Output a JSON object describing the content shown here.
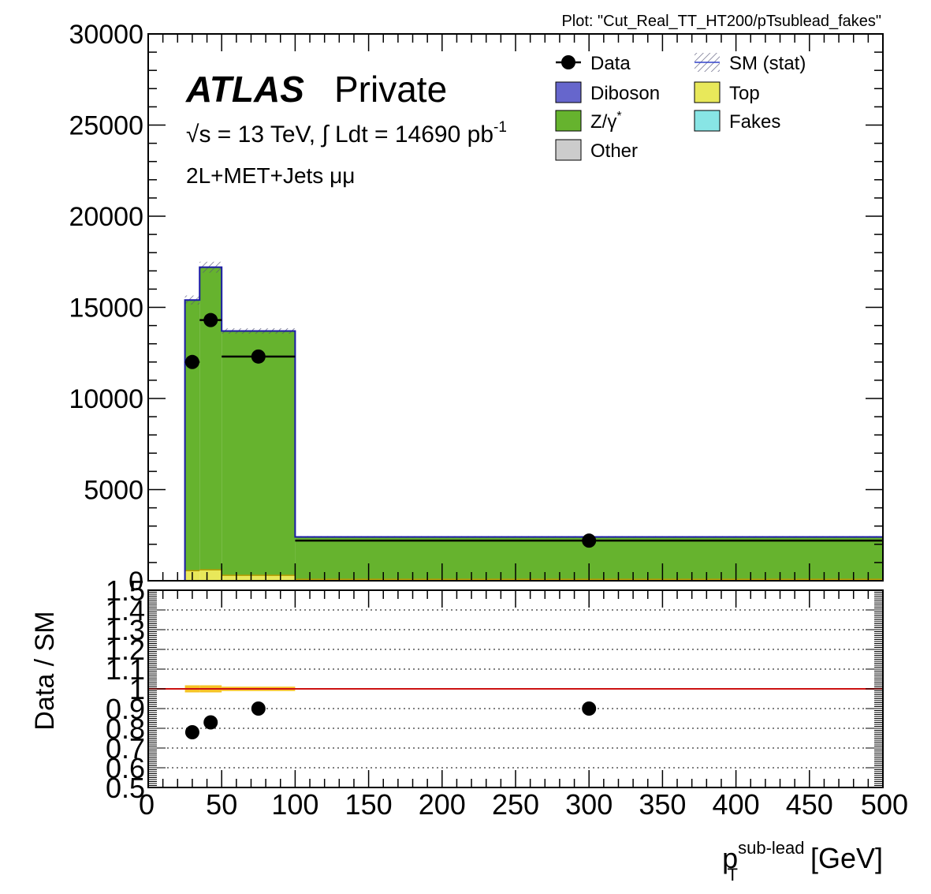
{
  "header": {
    "plot_id": "Plot: \"Cut_Real_TT_HT200/pTsublead_fakes\""
  },
  "labels": {
    "atlas": "ATLAS",
    "atlas_suffix": "Private",
    "energy_lumi": "√s = 13 TeV, ∫ Ldt = 14690 pb",
    "lumi_exponent": "-1",
    "channel": "2L+MET+Jets  μμ"
  },
  "legend": {
    "col1": [
      {
        "label": "Data",
        "type": "marker",
        "color": "#000000"
      },
      {
        "label": "Diboson",
        "type": "box",
        "color": "#6666cc"
      },
      {
        "label": "Z/γ",
        "sup": "*",
        "type": "box",
        "color": "#66b32e"
      },
      {
        "label": "Other",
        "type": "box",
        "color": "#cccccc"
      }
    ],
    "col2": [
      {
        "label": "SM (stat)",
        "type": "hatch",
        "color": "#3344cc"
      },
      {
        "label": "Top",
        "type": "box",
        "color": "#e8e85a"
      },
      {
        "label": "Fakes",
        "type": "box",
        "color": "#88e5e5"
      }
    ]
  },
  "chart_data": [
    {
      "type": "bar",
      "title": "",
      "xlabel_main": "p",
      "xlabel_sup": "sub-lead",
      "xlabel_sub": "T",
      "xlabel_unit": "[GeV]",
      "ylabel": "",
      "xlim": [
        0,
        500
      ],
      "ylim": [
        0,
        30000
      ],
      "x_ticks": [
        "0",
        "50",
        "100",
        "150",
        "200",
        "250",
        "300",
        "350",
        "400",
        "450",
        "500"
      ],
      "y_ticks": [
        "0",
        "5000",
        "10000",
        "15000",
        "20000",
        "25000",
        "30000"
      ],
      "bin_edges": [
        25,
        35,
        50,
        100,
        500
      ],
      "stack": [
        {
          "name": "Top",
          "color": "#e8e85a",
          "values": [
            550,
            600,
            300,
            80
          ]
        },
        {
          "name": "Z/γ*",
          "color": "#66b32e",
          "values": [
            14850,
            16600,
            13400,
            2320
          ]
        }
      ],
      "sm_total": [
        15400,
        17200,
        13700,
        2400
      ],
      "sm_stat_err": [
        250,
        300,
        150,
        50
      ],
      "data": {
        "name": "Data",
        "x": [
          30,
          42.5,
          75,
          300
        ],
        "y": [
          12000,
          14300,
          12300,
          2200
        ],
        "xerr": [
          5,
          7.5,
          25,
          200
        ]
      }
    },
    {
      "type": "scatter",
      "title": "",
      "ylabel": "Data / SM",
      "xlim": [
        0,
        500
      ],
      "ylim": [
        0.5,
        1.5
      ],
      "y_ticks": [
        "0.5",
        "0.6",
        "0.7",
        "0.8",
        "0.9",
        "1",
        "1.1",
        "1.2",
        "1.3",
        "1.4",
        "1.5"
      ],
      "grid": true,
      "reference_line": 1.0,
      "band": {
        "bin_edges": [
          25,
          35,
          50,
          100,
          500
        ],
        "half_width": [
          0.018,
          0.018,
          0.011,
          0.004
        ]
      },
      "ratio": {
        "x": [
          30,
          42.5,
          75,
          300
        ],
        "y": [
          0.78,
          0.83,
          0.9,
          0.9
        ]
      }
    }
  ],
  "colors": {
    "frame": "#000000",
    "sm_line": "#1a1aa6",
    "hatch": "#555577",
    "ref_line": "#cc1111",
    "ratio_band": "#f5b800"
  }
}
